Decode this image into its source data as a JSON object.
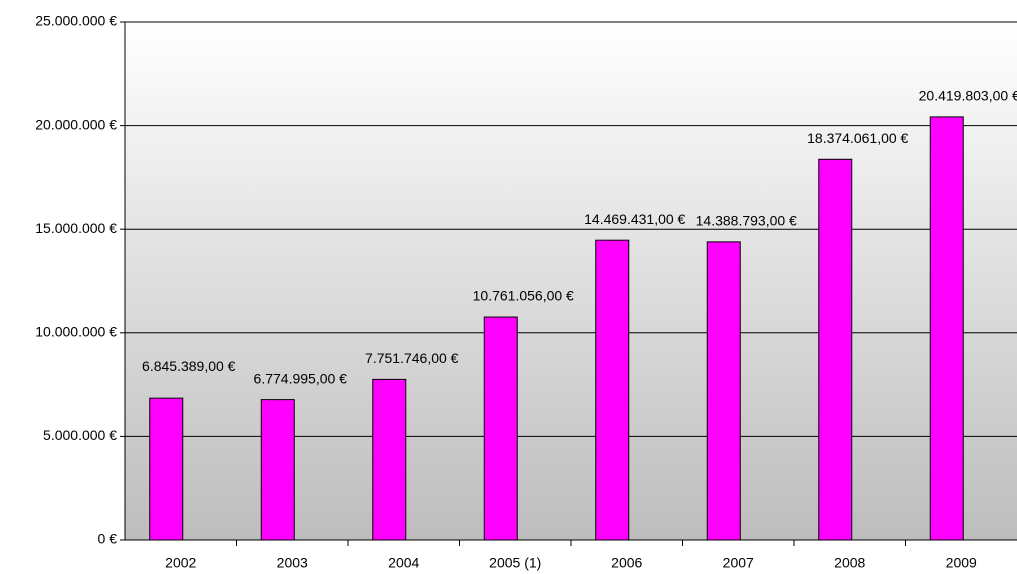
{
  "chart_data": {
    "type": "bar",
    "categories": [
      "2002",
      "2003",
      "2004",
      "2005 (1)",
      "2006",
      "2007",
      "2008",
      "2009"
    ],
    "values": [
      6845389,
      6774995,
      7751746,
      10761056,
      14469431,
      14388793,
      18374061,
      20419803
    ],
    "value_labels": [
      "6.845.389,00 €",
      "6.774.995,00 €",
      "7.751.746,00 €",
      "10.761.056,00 €",
      "14.469.431,00 €",
      "14.388.793,00 €",
      "18.374.061,00 €",
      "20.419.803,00 €"
    ],
    "color": "#ff00ff",
    "ylim": [
      0,
      25000000
    ],
    "yticks": [
      {
        "value": 0,
        "label": "0 €"
      },
      {
        "value": 5000000,
        "label": "5.000.000 €"
      },
      {
        "value": 10000000,
        "label": "10.000.000 €"
      },
      {
        "value": 15000000,
        "label": "15.000.000 €"
      },
      {
        "value": 20000000,
        "label": "20.000.000 €"
      },
      {
        "value": 25000000,
        "label": "25.000.000 €"
      }
    ],
    "grid": true
  }
}
